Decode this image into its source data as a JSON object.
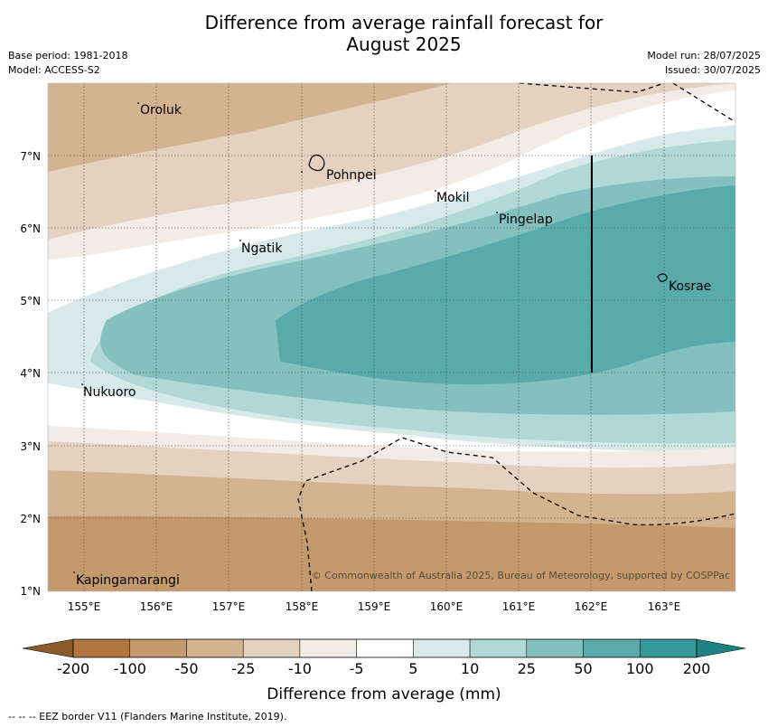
{
  "title": {
    "line1": "Difference from average rainfall forecast for",
    "line2": "August 2025"
  },
  "meta": {
    "base_period": "Base period: 1981-2018",
    "model": "Model: ACCESS-S2",
    "model_run": "Model run: 28/07/2025",
    "issued": "Issued: 30/07/2025"
  },
  "map": {
    "lon_range": [
      154.5,
      164.0
    ],
    "lat_range": [
      1.0,
      8.0
    ],
    "lon_ticks": [
      "155°E",
      "156°E",
      "157°E",
      "158°E",
      "159°E",
      "160°E",
      "161°E",
      "162°E",
      "163°E"
    ],
    "lat_ticks": [
      "1°N",
      "2°N",
      "3°N",
      "4°N",
      "5°N",
      "6°N",
      "7°N"
    ],
    "places": [
      {
        "name": "Oroluk",
        "lon": 155.8,
        "lat": 7.6
      },
      {
        "name": "Pohnpei",
        "lon": 158.2,
        "lat": 6.9
      },
      {
        "name": "Mokil",
        "lon": 159.9,
        "lat": 6.7
      },
      {
        "name": "Pingelap",
        "lon": 160.7,
        "lat": 6.2
      },
      {
        "name": "Ngatik",
        "lon": 157.1,
        "lat": 5.8
      },
      {
        "name": "Kosrae",
        "lon": 163.0,
        "lat": 5.3
      },
      {
        "name": "Nukuoro",
        "lon": 154.9,
        "lat": 3.8
      },
      {
        "name": "Kapingamarangi",
        "lon": 154.8,
        "lat": 1.1
      }
    ],
    "copyright": "© Commonwealth of Australia 2025, Bureau of Meteorology, supported by COSPPac",
    "eez_note": "-- -- -- EEZ border V11 (Flanders Marine Institute, 2019)."
  },
  "colorbar": {
    "label": "Difference from average (mm)",
    "ticks": [
      "-200",
      "-100",
      "-50",
      "-25",
      "-10",
      "-5",
      "5",
      "10",
      "25",
      "50",
      "100",
      "200"
    ],
    "colors": [
      "#8b5a2b",
      "#b07840",
      "#c49a6c",
      "#d4b390",
      "#e4d1bf",
      "#f3ebe5",
      "#ffffff",
      "#d7eae9",
      "#afd8d6",
      "#84c0bf",
      "#58abaa",
      "#34999a",
      "#1f8182"
    ]
  }
}
